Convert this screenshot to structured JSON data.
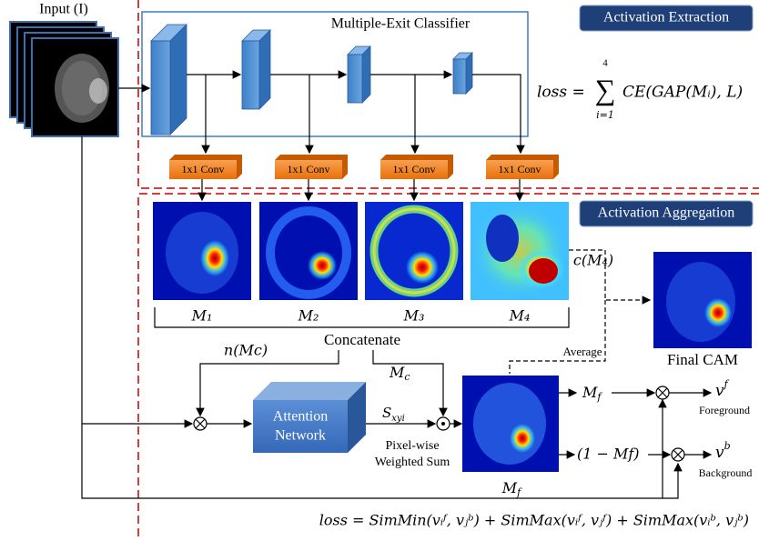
{
  "input_label": "Input (I)",
  "classifier_label": "Multiple-Exit Classifier",
  "sections": {
    "extraction": "Activation Extraction",
    "aggregation": "Activation Aggregation"
  },
  "loss_exit": {
    "lhs": "loss =",
    "upper": "4",
    "sum": "∑",
    "lower": "i=1",
    "rhs": "CE(GAP(Mᵢ), L)"
  },
  "conv_blocks": [
    "1x1 Conv",
    "1x1 Conv",
    "1x1 Conv",
    "1x1 Conv"
  ],
  "maps": [
    "M₁",
    "M₂",
    "M₃",
    "M₄"
  ],
  "concatenate": "Concatenate",
  "c_m4": "c(M₄)",
  "average": "Average",
  "final_cam": "Final CAM",
  "n_mc": "n(Mc)",
  "m_c": {
    "base": "M",
    "sub": "c"
  },
  "attention_network": [
    "Attention",
    "Network"
  ],
  "s_xyi": {
    "base": "S",
    "sub": "xyi"
  },
  "pixel_sum": [
    "Pixel-wise",
    "Weighted Sum"
  ],
  "mf_image_label": {
    "base": "M",
    "sub": "f"
  },
  "mf_branch": {
    "base": "M",
    "sub": "f"
  },
  "inv_branch": "(1 − Mf)",
  "vf": {
    "base": "v",
    "sup": "f"
  },
  "foreground": "Foreground",
  "vb": {
    "base": "v",
    "sup": "b"
  },
  "background": "Background",
  "loss_final": "loss = SimMin(vᵢᶠ, vⱼᵇ) + SimMax(vᵢᶠ, vⱼᶠ) + SimMax(vᵢᵇ, vⱼᵇ)"
}
